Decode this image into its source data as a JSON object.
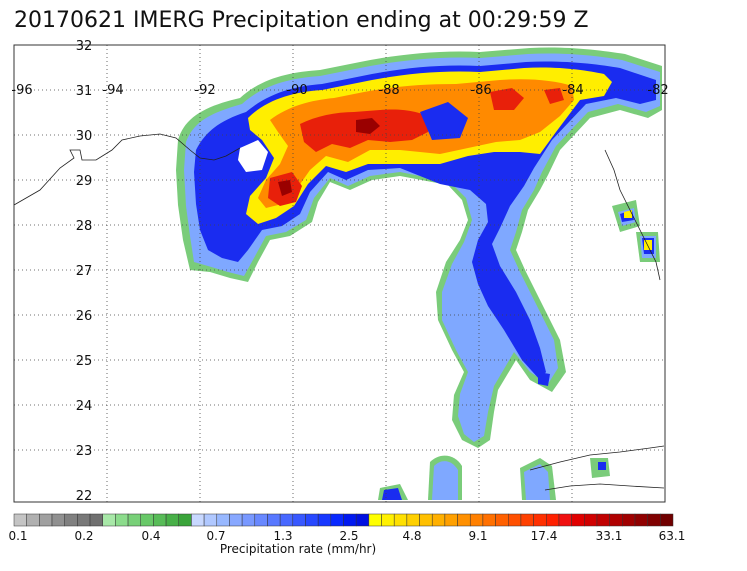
{
  "title": "20170621 IMERG Precipitation ending at 00:29:59 Z",
  "map": {
    "lon_labels": [
      "-96",
      "-94",
      "-92",
      "-90",
      "-88",
      "-86",
      "-84",
      "-82"
    ],
    "lat_labels": [
      "32",
      "31",
      "30",
      "29",
      "28",
      "27",
      "26",
      "25",
      "24",
      "23",
      "22"
    ],
    "lon_range": [
      -96,
      -82
    ],
    "lat_range": [
      22,
      32
    ],
    "grid": "dotted"
  },
  "colorbar": {
    "title": "Precipitation rate (mm/hr)",
    "tick_labels": [
      "0.1",
      "0.2",
      "0.4",
      "0.7",
      "1.3",
      "2.5",
      "4.8",
      "9.1",
      "17.4",
      "33.1",
      "63.1"
    ],
    "colors": [
      "#c4c4c4",
      "#b0b0b0",
      "#a0a0a0",
      "#909090",
      "#808080",
      "#787878",
      "#707070",
      "#a8e8a8",
      "#8cdc8c",
      "#78d078",
      "#68c868",
      "#58bc58",
      "#48b048",
      "#3aa43a",
      "#c8d8ff",
      "#b0c8ff",
      "#98b8ff",
      "#88a8ff",
      "#7898ff",
      "#6888ff",
      "#5878ff",
      "#4868ff",
      "#3858ff",
      "#2848ff",
      "#1838ff",
      "#0828ff",
      "#0018f0",
      "#0010e0",
      "#ffff00",
      "#fff000",
      "#ffe000",
      "#ffd000",
      "#ffc000",
      "#ffb000",
      "#ffa000",
      "#ff9000",
      "#ff8000",
      "#ff7000",
      "#ff6000",
      "#ff5000",
      "#ff4000",
      "#ff3000",
      "#ff2000",
      "#f01010",
      "#e00000",
      "#d00000",
      "#c00000",
      "#b00000",
      "#a00000",
      "#900000",
      "#800000",
      "#700000"
    ]
  }
}
